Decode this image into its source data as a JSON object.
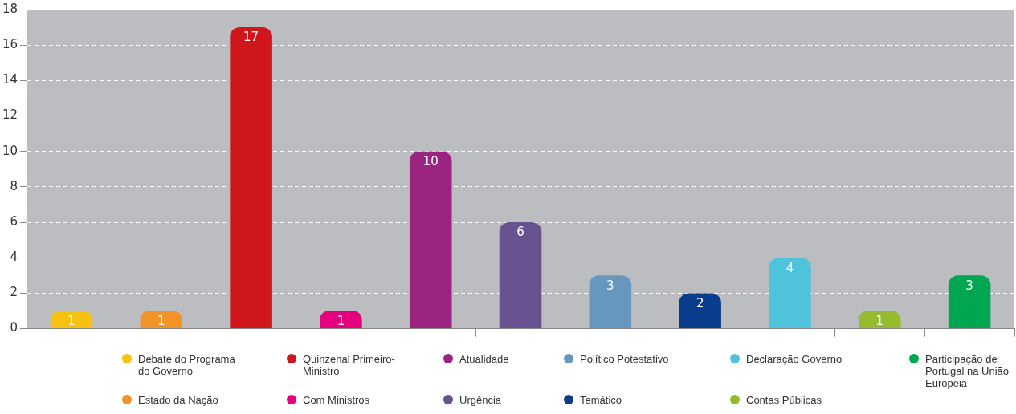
{
  "chart_data": {
    "type": "bar",
    "stacked": true,
    "categories": [
      null,
      null,
      null,
      null,
      null,
      null,
      null,
      null,
      null,
      null,
      null
    ],
    "series": [
      {
        "name": "Debate do Programa do Governo",
        "color": "#f7c10f",
        "values": [
          1,
          null,
          null,
          null,
          null,
          null,
          null,
          null,
          null,
          null,
          null
        ]
      },
      {
        "name": "Estado da Nação",
        "color": "#f39325",
        "values": [
          null,
          1,
          null,
          null,
          null,
          null,
          null,
          null,
          null,
          null,
          null
        ]
      },
      {
        "name": "Quinzenal Primeiro-Ministro",
        "color": "#cf161d",
        "values": [
          null,
          null,
          17,
          null,
          null,
          null,
          null,
          null,
          null,
          null,
          null
        ]
      },
      {
        "name": "Com Ministros",
        "color": "#e5007e",
        "values": [
          null,
          null,
          null,
          1,
          null,
          null,
          null,
          null,
          null,
          null,
          null
        ]
      },
      {
        "name": "Atualidade",
        "color": "#9b2480",
        "values": [
          null,
          null,
          null,
          null,
          10,
          null,
          null,
          null,
          null,
          null,
          null
        ]
      },
      {
        "name": "Urgência",
        "color": "#68528f",
        "values": [
          null,
          null,
          null,
          null,
          null,
          6,
          null,
          null,
          null,
          null,
          null
        ]
      },
      {
        "name": "Político Potestativo",
        "color": "#6796bf",
        "values": [
          null,
          null,
          null,
          null,
          null,
          null,
          3,
          null,
          null,
          null,
          null
        ]
      },
      {
        "name": "Temático",
        "color": "#0a3d8c",
        "values": [
          null,
          null,
          null,
          null,
          null,
          null,
          null,
          2,
          null,
          null,
          null
        ]
      },
      {
        "name": "Declaração Governo",
        "color": "#4fc3dc",
        "values": [
          null,
          null,
          null,
          null,
          null,
          null,
          null,
          null,
          4,
          null,
          null
        ]
      },
      {
        "name": "Contas Públicas",
        "color": "#95bb2f",
        "values": [
          null,
          null,
          null,
          null,
          null,
          null,
          null,
          null,
          null,
          1,
          null
        ]
      },
      {
        "name": "Participação de Portugal na União Europeia",
        "color": "#00a650",
        "values": [
          null,
          null,
          null,
          null,
          null,
          null,
          null,
          null,
          null,
          null,
          3
        ]
      }
    ],
    "ylim": [
      0,
      18
    ],
    "yticks": [
      0,
      2,
      4,
      6,
      8,
      10,
      12,
      14,
      16,
      18
    ],
    "grid": "y",
    "legend": "bottom",
    "data_labels": true
  }
}
